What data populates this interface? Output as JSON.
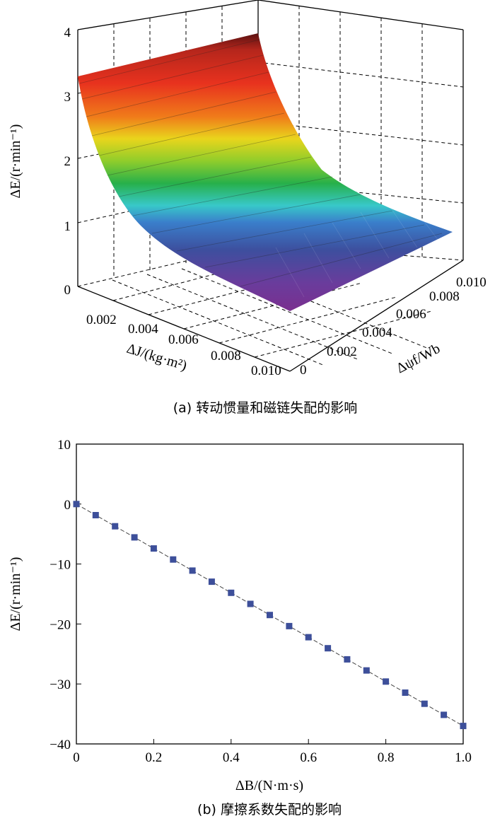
{
  "chart_data": [
    {
      "type": "surface",
      "caption": "(a) 转动惯量和磁链失配的影响",
      "zlabel": "ΔE/(r·min⁻¹)",
      "xlabel": "ΔJ/(kg·m²)",
      "ylabel": "Δψf/Wb",
      "x_ticks": [
        "0.002",
        "0.004",
        "0.006",
        "0.008",
        "0.010"
      ],
      "y_ticks": [
        "0",
        "0.002",
        "0.004",
        "0.006",
        "0.008",
        "0.010"
      ],
      "z_ticks": [
        "0",
        "1",
        "2",
        "3",
        "4"
      ],
      "xlim": [
        0,
        0.01
      ],
      "ylim": [
        0,
        0.01
      ],
      "zlim": [
        0,
        4
      ],
      "grid": true,
      "colormap": "rainbow",
      "surface_samples": {
        "description_units": "ΔJ in kg·m², ΔE in r·min⁻¹",
        "J": [
          0,
          0.002,
          0.004,
          0.006,
          0.008,
          0.01
        ],
        "E": [
          3.3,
          2.1,
          1.35,
          0.8,
          0.45,
          0.2
        ]
      }
    },
    {
      "type": "line",
      "caption": "(b) 摩擦系数失配的影响",
      "xlabel": "ΔB/(N·m·s)",
      "ylabel": "ΔE/(r·min⁻¹)",
      "xlim": [
        0,
        1
      ],
      "ylim": [
        -40,
        10
      ],
      "x_ticks": [
        "0",
        "0.2",
        "0.4",
        "0.6",
        "0.8",
        "1.0"
      ],
      "y_ticks": [
        "10",
        "0",
        "-10",
        "-20",
        "-30",
        "-40"
      ],
      "grid": false,
      "series": [
        {
          "x": [
            0,
            0.05,
            0.1,
            0.15,
            0.2,
            0.25,
            0.3,
            0.35,
            0.4,
            0.45,
            0.5,
            0.55,
            0.6,
            0.65,
            0.7,
            0.75,
            0.8,
            0.85,
            0.9,
            0.95,
            1.0
          ],
          "values": [
            0,
            -1.85,
            -3.7,
            -5.55,
            -7.4,
            -9.25,
            -11.1,
            -12.95,
            -14.8,
            -16.65,
            -18.5,
            -20.35,
            -22.2,
            -24.05,
            -25.9,
            -27.75,
            -29.6,
            -31.45,
            -33.3,
            -35.15,
            -37.0
          ]
        }
      ],
      "colors": {
        "marker": "#3d4f9a",
        "line": "#444444"
      }
    }
  ]
}
